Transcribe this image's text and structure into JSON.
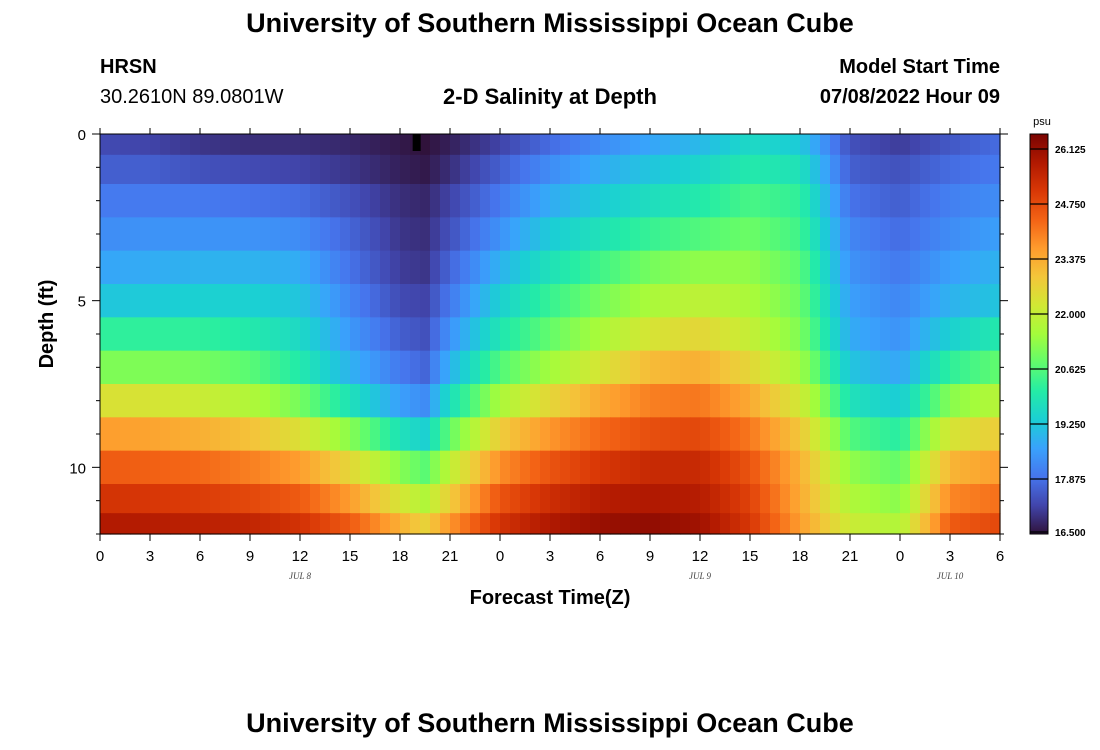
{
  "page": {
    "title_top": "University of Southern Mississippi Ocean Cube",
    "title_bottom": "University of Southern Mississippi Ocean Cube"
  },
  "header": {
    "station": "HRSN",
    "coords": "30.2610N  89.0801W",
    "plot_title": "2-D Salinity at Depth",
    "model_label": "Model Start Time",
    "model_time": "07/08/2022 Hour 09"
  },
  "chart_data": {
    "type": "heatmap",
    "title": "2-D Salinity at Depth",
    "xlabel": "Forecast Time(Z)",
    "ylabel": "Depth (ft)",
    "x_tick_labels": [
      "0",
      "3",
      "6",
      "9",
      "12",
      "15",
      "18",
      "21",
      "0",
      "3",
      "6",
      "9",
      "12",
      "15",
      "18",
      "21",
      "0",
      "3",
      "6"
    ],
    "x_range_hours": [
      0,
      54
    ],
    "date_labels": [
      {
        "text": "JUL 8",
        "hour": 12
      },
      {
        "text": "JUL 9",
        "hour": 36
      },
      {
        "text": "JUL 10",
        "hour": 51
      }
    ],
    "y_tick_labels": [
      "0",
      "5",
      "10"
    ],
    "y_ticks": [
      0,
      5,
      10
    ],
    "ylim": [
      0,
      12
    ],
    "depth_levels_ft": [
      0.25,
      1,
      2,
      3,
      4,
      5,
      6,
      7,
      8,
      9,
      10,
      11,
      11.75
    ],
    "hour_anchors": [
      0,
      3,
      6,
      9,
      12,
      15,
      18,
      19.5,
      21,
      24,
      27,
      30,
      33,
      36,
      39,
      42,
      45,
      48,
      51,
      54
    ],
    "salinity_psu": [
      [
        17.3,
        17.2,
        17.0,
        16.9,
        16.9,
        16.8,
        16.6,
        16.5,
        16.7,
        17.2,
        17.8,
        18.3,
        18.7,
        19.0,
        19.6,
        19.3,
        17.4,
        17.1,
        17.5,
        17.8
      ],
      [
        17.6,
        17.6,
        17.4,
        17.3,
        17.2,
        17.0,
        16.7,
        16.6,
        16.9,
        17.6,
        18.3,
        18.8,
        19.2,
        19.5,
        20.0,
        19.8,
        17.6,
        17.4,
        17.8,
        18.0
      ],
      [
        18.0,
        18.0,
        18.0,
        17.9,
        17.8,
        17.4,
        16.9,
        16.8,
        17.2,
        18.0,
        18.8,
        19.3,
        19.7,
        20.0,
        20.5,
        20.2,
        17.9,
        17.6,
        18.1,
        18.3
      ],
      [
        18.3,
        18.4,
        18.4,
        18.4,
        18.3,
        17.7,
        17.0,
        16.9,
        17.4,
        18.4,
        19.3,
        19.8,
        20.3,
        20.6,
        20.9,
        20.4,
        18.2,
        17.8,
        18.3,
        18.6
      ],
      [
        18.7,
        18.8,
        18.9,
        18.9,
        18.8,
        17.9,
        17.1,
        17.0,
        17.7,
        18.9,
        19.8,
        20.4,
        21.0,
        21.3,
        21.3,
        20.7,
        18.4,
        18.0,
        18.6,
        18.9
      ],
      [
        19.2,
        19.3,
        19.4,
        19.4,
        19.2,
        18.2,
        17.3,
        17.2,
        18.0,
        19.4,
        20.3,
        21.0,
        21.6,
        21.9,
        21.6,
        20.9,
        18.6,
        18.2,
        18.9,
        19.2
      ],
      [
        20.2,
        20.2,
        20.2,
        20.0,
        19.6,
        18.5,
        17.6,
        17.4,
        18.4,
        19.9,
        20.8,
        21.6,
        22.3,
        22.6,
        22.0,
        21.1,
        18.8,
        18.4,
        19.4,
        20.0
      ],
      [
        21.1,
        21.1,
        21.0,
        20.7,
        20.0,
        18.9,
        18.0,
        17.7,
        18.9,
        20.6,
        21.5,
        22.3,
        23.1,
        23.3,
        22.6,
        21.5,
        19.2,
        18.7,
        20.2,
        20.8
      ],
      [
        22.4,
        22.3,
        22.1,
        21.7,
        21.0,
        19.8,
        18.6,
        18.3,
        19.7,
        21.6,
        22.6,
        23.4,
        24.0,
        24.1,
        23.4,
        22.2,
        19.8,
        19.3,
        21.2,
        21.8
      ],
      [
        23.6,
        23.5,
        23.3,
        23.0,
        22.4,
        21.2,
        19.8,
        19.4,
        20.8,
        22.8,
        23.7,
        24.3,
        24.7,
        24.8,
        24.1,
        22.9,
        20.6,
        20.1,
        22.3,
        22.8
      ],
      [
        24.5,
        24.4,
        24.3,
        24.0,
        23.6,
        22.6,
        21.2,
        20.7,
        21.9,
        23.8,
        24.6,
        25.1,
        25.4,
        25.4,
        24.6,
        23.3,
        21.3,
        20.8,
        23.2,
        23.6
      ],
      [
        25.2,
        25.1,
        25.0,
        24.8,
        24.5,
        23.6,
        22.3,
        21.7,
        22.8,
        24.6,
        25.3,
        25.7,
        25.8,
        25.7,
        24.9,
        23.4,
        21.7,
        21.2,
        23.9,
        24.2
      ],
      [
        25.8,
        25.7,
        25.6,
        25.5,
        25.2,
        24.5,
        23.3,
        22.7,
        23.7,
        25.2,
        25.8,
        26.1,
        26.2,
        26.0,
        25.1,
        23.6,
        22.1,
        21.7,
        24.5,
        24.8
      ]
    ],
    "marker_hour": 19,
    "colorbar": {
      "unit": "psu",
      "min": 16.5,
      "max": 26.5,
      "tick_labels": [
        "26.125",
        "24.750",
        "23.375",
        "22.000",
        "20.625",
        "19.250",
        "17.875",
        "16.500"
      ],
      "tick_values": [
        26.125,
        24.75,
        23.375,
        22.0,
        20.625,
        19.25,
        17.875,
        16.5
      ]
    },
    "colormap": [
      "#30123b",
      "#4145ab",
      "#4675ed",
      "#39a2fc",
      "#1bcfd4",
      "#24eca6",
      "#61fc6c",
      "#a4fc3b",
      "#d1e834",
      "#f3c63a",
      "#fe9b2d",
      "#f36315",
      "#d93806",
      "#b11901",
      "#7a0402"
    ]
  }
}
